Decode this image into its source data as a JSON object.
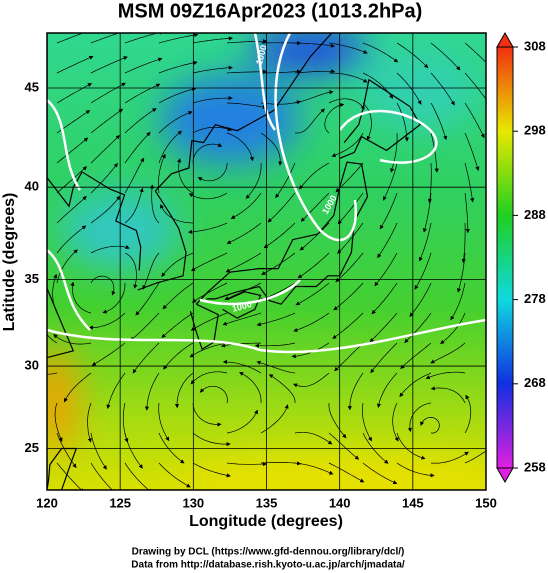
{
  "chart_data": {
    "type": "map",
    "title": "MSM 09Z16Apr2023 (1013.2hPa)",
    "x_label": "Longitude (degrees)",
    "y_label": "Latitude  (degrees)",
    "xlim": [
      120,
      150
    ],
    "xticks": [
      120,
      125,
      130,
      135,
      140,
      145,
      150
    ],
    "ylim": [
      22.4,
      47.6
    ],
    "yticks": [
      25,
      30,
      35,
      40,
      45
    ],
    "projection": "mercator",
    "grid": true,
    "colorbar": {
      "lim": [
        258,
        308
      ],
      "ticks": [
        258,
        268,
        278,
        288,
        298,
        308
      ]
    },
    "isobar_labels": [
      1000,
      1000,
      1000
    ],
    "credits": [
      "Drawing by DCL (https://www.gfd-dennou.org/library/dcl/)",
      "Data from http://database.rish.kyoto-u.ac.jp/arch/jmadata/"
    ]
  }
}
